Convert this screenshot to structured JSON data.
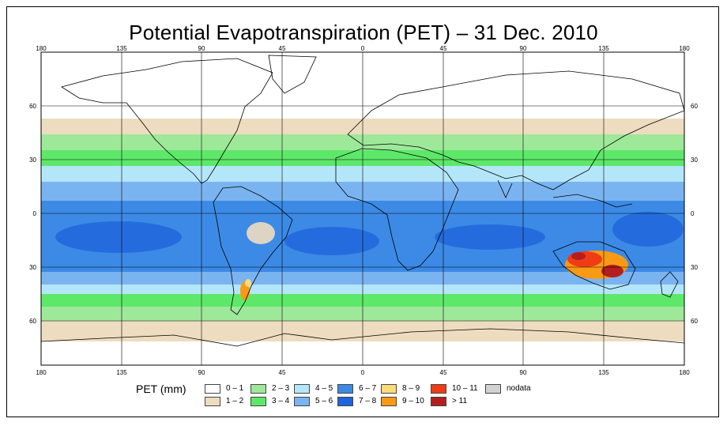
{
  "title": "Potential Evapotranspiration (PET) – 31 Dec. 2010",
  "axes": {
    "lon_labels": [
      "180",
      "135",
      "90",
      "45",
      "0",
      "45",
      "90",
      "135",
      "180"
    ],
    "lat_labels": [
      "60",
      "30",
      "0",
      "30",
      "60"
    ]
  },
  "legend": {
    "title": "PET (mm)",
    "items": [
      {
        "label": "0 – 1",
        "color": "#ffffff"
      },
      {
        "label": "1 – 2",
        "color": "#eedcc0"
      },
      {
        "label": "2 – 3",
        "color": "#9ee89a"
      },
      {
        "label": "3 – 4",
        "color": "#5ee86a"
      },
      {
        "label": "4 – 5",
        "color": "#b4e6fa"
      },
      {
        "label": "5 – 6",
        "color": "#7ab4f0"
      },
      {
        "label": "6 – 7",
        "color": "#3c8ae6"
      },
      {
        "label": "7 – 8",
        "color": "#1e64dc"
      },
      {
        "label": "8 – 9",
        "color": "#fadc78"
      },
      {
        "label": "9 – 10",
        "color": "#fa9a14"
      },
      {
        "label": "10 – 11",
        "color": "#f03c14"
      },
      {
        "label": "> 11",
        "color": "#b41e1e"
      },
      {
        "label": "nodata",
        "color": "#d2d2d2"
      }
    ]
  },
  "colors": {
    "land_outline": "#000000",
    "grid": "#000000",
    "band_white": "#ffffff",
    "band_tan": "#eedcc0",
    "band_lightgreen": "#9ee89a",
    "band_green": "#5ee86a",
    "band_cyan": "#b4e6fa",
    "band_blue5": "#7ab4f0",
    "band_blue6": "#3c8ae6",
    "band_blue7": "#1e64dc"
  }
}
